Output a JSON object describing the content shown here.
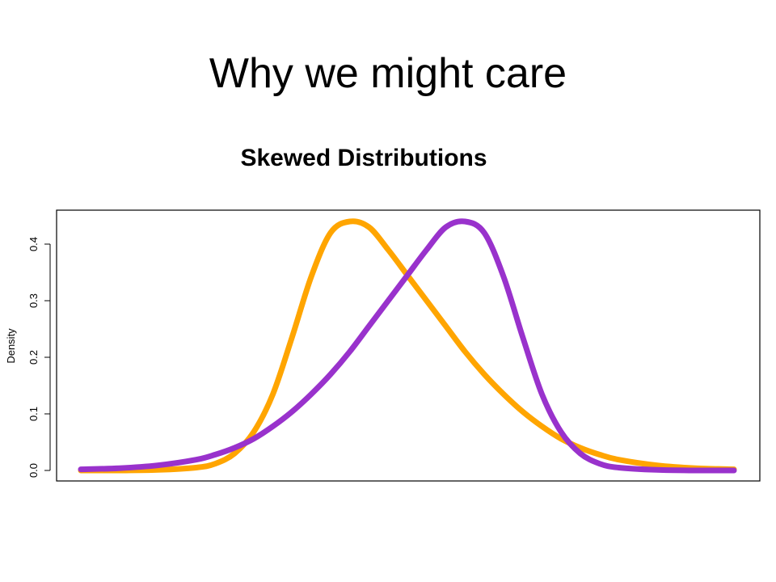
{
  "slide": {
    "title": "Why we might care",
    "subtitle": "Skewed Distributions"
  },
  "chart_data": {
    "type": "line",
    "title": "",
    "xlabel": "",
    "ylabel": "Density",
    "xlim": [
      -3.4,
      3.4
    ],
    "ylim": [
      0,
      0.45
    ],
    "y_ticks": [
      "0.0",
      "0.1",
      "0.2",
      "0.3",
      "0.4"
    ],
    "x_ticks_visible": false,
    "grid": false,
    "legend": "none",
    "series": [
      {
        "color": "#ffa500",
        "x": [
          -3.4,
          -3.0,
          -2.6,
          -2.2,
          -2.0,
          -1.8,
          -1.6,
          -1.4,
          -1.2,
          -1.0,
          -0.8,
          -0.6,
          -0.4,
          -0.2,
          0.0,
          0.2,
          0.4,
          0.6,
          0.8,
          1.0,
          1.2,
          1.4,
          1.6,
          1.8,
          2.0,
          2.2,
          2.6,
          3.0,
          3.4
        ],
        "y": [
          0.0,
          0.0,
          0.001,
          0.005,
          0.012,
          0.03,
          0.068,
          0.135,
          0.236,
          0.343,
          0.42,
          0.44,
          0.43,
          0.39,
          0.345,
          0.3,
          0.255,
          0.21,
          0.17,
          0.135,
          0.104,
          0.078,
          0.056,
          0.04,
          0.028,
          0.019,
          0.009,
          0.004,
          0.002
        ]
      },
      {
        "color": "#9932cc",
        "x": [
          -3.4,
          -3.0,
          -2.6,
          -2.2,
          -2.0,
          -1.8,
          -1.6,
          -1.4,
          -1.2,
          -1.0,
          -0.8,
          -0.6,
          -0.4,
          -0.2,
          0.0,
          0.2,
          0.4,
          0.6,
          0.8,
          1.0,
          1.2,
          1.4,
          1.6,
          1.8,
          2.0,
          2.2,
          2.6,
          3.0,
          3.4
        ],
        "y": [
          0.002,
          0.004,
          0.009,
          0.019,
          0.028,
          0.04,
          0.056,
          0.078,
          0.104,
          0.135,
          0.17,
          0.21,
          0.255,
          0.3,
          0.345,
          0.39,
          0.43,
          0.44,
          0.42,
          0.343,
          0.236,
          0.135,
          0.068,
          0.03,
          0.012,
          0.005,
          0.001,
          0.0,
          0.0
        ]
      }
    ]
  }
}
